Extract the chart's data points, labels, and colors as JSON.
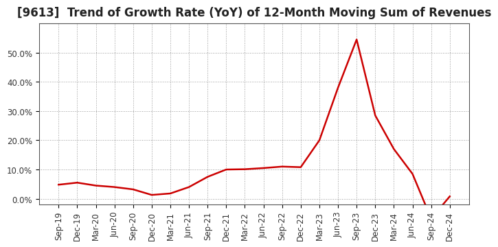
{
  "title": "[9613]  Trend of Growth Rate (YoY) of 12-Month Moving Sum of Revenues",
  "x_labels": [
    "Sep-19",
    "Dec-19",
    "Mar-20",
    "Jun-20",
    "Sep-20",
    "Dec-20",
    "Mar-21",
    "Jun-21",
    "Sep-21",
    "Dec-21",
    "Mar-22",
    "Jun-22",
    "Sep-22",
    "Dec-22",
    "Mar-23",
    "Jun-23",
    "Sep-23",
    "Dec-23",
    "Mar-24",
    "Jun-24",
    "Sep-24",
    "Dec-24"
  ],
  "y_values": [
    0.048,
    0.055,
    0.045,
    0.04,
    0.032,
    0.013,
    0.018,
    0.04,
    0.075,
    0.1,
    0.101,
    0.105,
    0.11,
    0.108,
    0.2,
    0.38,
    0.545,
    0.285,
    0.17,
    0.085,
    -0.068,
    0.008
  ],
  "line_color": "#cc0000",
  "line_width": 1.8,
  "background_color": "#ffffff",
  "grid_color": "#999999",
  "title_fontsize": 12,
  "tick_fontsize": 8.5,
  "ylim": [
    -0.02,
    0.6
  ],
  "yticks": [
    0.0,
    0.1,
    0.2,
    0.3,
    0.4,
    0.5
  ],
  "ytick_labels": [
    "0.0%",
    "10.0%",
    "20.0%",
    "30.0%",
    "40.0%",
    "50.0%"
  ]
}
